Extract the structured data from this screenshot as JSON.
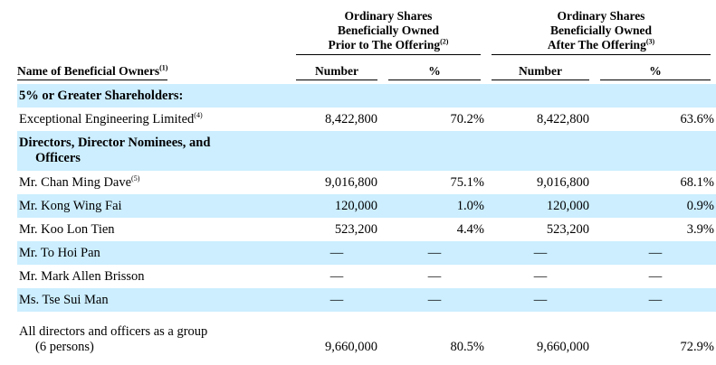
{
  "header": {
    "group1": [
      "Ordinary Shares",
      "Beneficially Owned",
      "Prior to The Offering"
    ],
    "group1_sup": "(2)",
    "group2": [
      "Ordinary Shares",
      "Beneficially Owned",
      "After The Offering"
    ],
    "group2_sup": "(3)",
    "name_col": "Name of Beneficial Owners",
    "name_sup": "(1)",
    "number": "Number",
    "pct": "%"
  },
  "sections": {
    "s1": "5% or Greater Shareholders:",
    "s2_line1": "Directors, Director Nominees, and",
    "s2_line2": "Officers"
  },
  "rows": [
    {
      "name": "Exceptional Engineering Limited",
      "sup": "(4)",
      "n1": "8,422,800",
      "p1": "70.2%",
      "n2": "8,422,800",
      "p2": "63.6%"
    },
    {
      "name": "Mr. Chan Ming Dave",
      "sup": "(5)",
      "n1": "9,016,800",
      "p1": "75.1%",
      "n2": "9,016,800",
      "p2": "68.1%"
    },
    {
      "name": "Mr. Kong Wing Fai",
      "sup": "",
      "n1": "120,000",
      "p1": "1.0%",
      "n2": "120,000",
      "p2": "0.9%"
    },
    {
      "name": "Mr. Koo Lon Tien",
      "sup": "",
      "n1": "523,200",
      "p1": "4.4%",
      "n2": "523,200",
      "p2": "3.9%"
    },
    {
      "name": "Mr. To Hoi Pan",
      "sup": "",
      "n1": "—",
      "p1": "—",
      "n2": "—",
      "p2": "—"
    },
    {
      "name": "Mr. Mark Allen Brisson",
      "sup": "",
      "n1": "—",
      "p1": "—",
      "n2": "—",
      "p2": "—"
    },
    {
      "name": "Ms. Tse Sui Man",
      "sup": "",
      "n1": "—",
      "p1": "—",
      "n2": "—",
      "p2": "—"
    }
  ],
  "total": {
    "line1": "All directors and officers as a group",
    "line2": "(6 persons)",
    "n1": "9,660,000",
    "p1": "80.5%",
    "n2": "9,660,000",
    "p2": "72.9%"
  },
  "colors": {
    "shade": "#cceeff"
  }
}
